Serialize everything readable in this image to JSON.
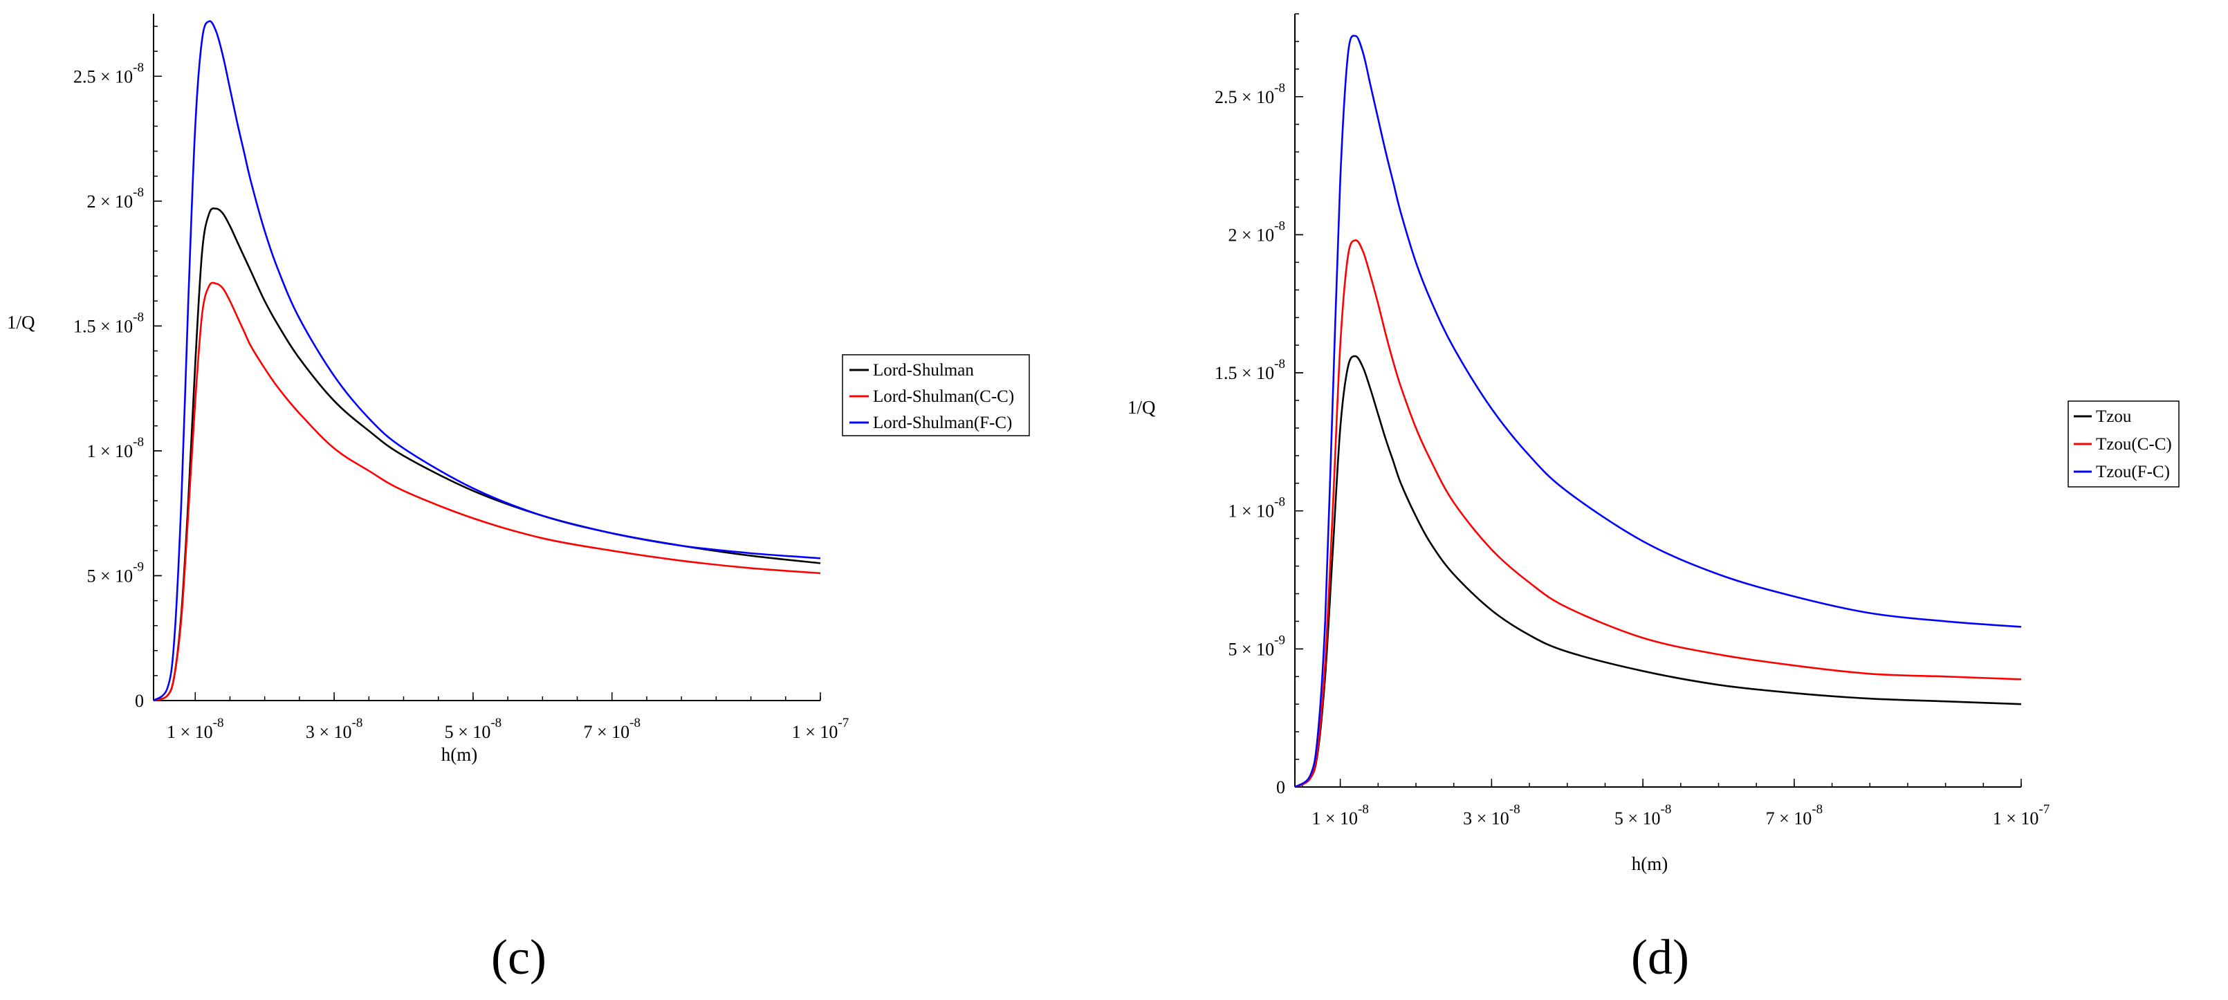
{
  "chart_data": [
    {
      "type": "line",
      "panel_label": "(c)",
      "xlabel": "h(m)",
      "ylabel": "1/Q",
      "xlim": [
        4e-09,
        1e-07
      ],
      "ylim": [
        0,
        2.75e-08
      ],
      "x_ticks": [
        {
          "value": 1e-08,
          "mant": "1",
          "exp": "-8"
        },
        {
          "value": 3e-08,
          "mant": "3",
          "exp": "-8"
        },
        {
          "value": 5e-08,
          "mant": "5",
          "exp": "-8"
        },
        {
          "value": 7e-08,
          "mant": "7",
          "exp": "-8"
        },
        {
          "value": 1e-07,
          "mant": "1",
          "exp": "-7"
        }
      ],
      "y_ticks": [
        {
          "value": 0,
          "mant": "0",
          "exp": ""
        },
        {
          "value": 5e-09,
          "mant": "5",
          "exp": "-9"
        },
        {
          "value": 1e-08,
          "mant": "1",
          "exp": "-8"
        },
        {
          "value": 1.5e-08,
          "mant": "1.5",
          "exp": "-8"
        },
        {
          "value": 2e-08,
          "mant": "2",
          "exp": "-8"
        },
        {
          "value": 2.5e-08,
          "mant": "2.5",
          "exp": "-8"
        }
      ],
      "legend_position": "right",
      "series": [
        {
          "name": "Lord-Shulman",
          "color": "#000000",
          "x": [
            4e-09,
            6e-09,
            7e-09,
            8e-09,
            9e-09,
            1e-08,
            1.1e-08,
            1.2e-08,
            1.3e-08,
            1.4e-08,
            1.5e-08,
            1.6e-08,
            1.7e-08,
            1.8e-08,
            2e-08,
            2.2e-08,
            2.5e-08,
            3e-08,
            3.5e-08,
            4e-08,
            5e-08,
            6e-08,
            7e-08,
            8e-08,
            9e-08,
            1e-07
          ],
          "y": [
            0,
            2e-10,
            1e-09,
            3.5e-09,
            8e-09,
            1.35e-08,
            1.8e-08,
            1.95e-08,
            1.97e-08,
            1.95e-08,
            1.9e-08,
            1.84e-08,
            1.78e-08,
            1.72e-08,
            1.6e-08,
            1.5e-08,
            1.37e-08,
            1.2e-08,
            1.08e-08,
            9.8e-09,
            8.4e-09,
            7.4e-09,
            6.7e-09,
            6.2e-09,
            5.8e-09,
            5.5e-09
          ]
        },
        {
          "name": "Lord-Shulman(C-C)",
          "color": "#ff0000",
          "x": [
            4e-09,
            6e-09,
            7e-09,
            8e-09,
            9e-09,
            1e-08,
            1.1e-08,
            1.2e-08,
            1.3e-08,
            1.4e-08,
            1.5e-08,
            1.6e-08,
            1.7e-08,
            1.8e-08,
            2e-08,
            2.2e-08,
            2.5e-08,
            3e-08,
            3.5e-08,
            4e-08,
            5e-08,
            6e-08,
            7e-08,
            8e-08,
            9e-08,
            1e-07
          ],
          "y": [
            0,
            2e-10,
            1e-09,
            3.3e-09,
            7.5e-09,
            1.2e-08,
            1.55e-08,
            1.66e-08,
            1.67e-08,
            1.65e-08,
            1.6e-08,
            1.54e-08,
            1.48e-08,
            1.42e-08,
            1.33e-08,
            1.25e-08,
            1.15e-08,
            1.01e-08,
            9.2e-09,
            8.4e-09,
            7.3e-09,
            6.5e-09,
            6e-09,
            5.6e-09,
            5.3e-09,
            5.1e-09
          ]
        },
        {
          "name": "Lord-Shulman(F-C)",
          "color": "#0000ff",
          "x": [
            4e-09,
            6e-09,
            7e-09,
            8e-09,
            9e-09,
            1e-08,
            1.1e-08,
            1.2e-08,
            1.3e-08,
            1.4e-08,
            1.5e-08,
            1.6e-08,
            1.7e-08,
            1.8e-08,
            2e-08,
            2.2e-08,
            2.5e-08,
            3e-08,
            3.5e-08,
            4e-08,
            5e-08,
            6e-08,
            7e-08,
            8e-08,
            9e-08,
            1e-07
          ],
          "y": [
            0,
            5e-10,
            2.5e-09,
            8e-09,
            1.6e-08,
            2.3e-08,
            2.65e-08,
            2.72e-08,
            2.68e-08,
            2.58e-08,
            2.45e-08,
            2.32e-08,
            2.2e-08,
            2.08e-08,
            1.88e-08,
            1.72e-08,
            1.53e-08,
            1.3e-08,
            1.13e-08,
            1.01e-08,
            8.5e-09,
            7.4e-09,
            6.7e-09,
            6.2e-09,
            5.9e-09,
            5.7e-09
          ]
        }
      ]
    },
    {
      "type": "line",
      "panel_label": "(d)",
      "xlabel": "h(m)",
      "ylabel": "1/Q",
      "xlim": [
        4e-09,
        1e-07
      ],
      "ylim": [
        0,
        2.8e-08
      ],
      "x_ticks": [
        {
          "value": 1e-08,
          "mant": "1",
          "exp": "-8"
        },
        {
          "value": 3e-08,
          "mant": "3",
          "exp": "-8"
        },
        {
          "value": 5e-08,
          "mant": "5",
          "exp": "-8"
        },
        {
          "value": 7e-08,
          "mant": "7",
          "exp": "-8"
        },
        {
          "value": 1e-07,
          "mant": "1",
          "exp": "-7"
        }
      ],
      "y_ticks": [
        {
          "value": 0,
          "mant": "0",
          "exp": ""
        },
        {
          "value": 5e-09,
          "mant": "5",
          "exp": "-9"
        },
        {
          "value": 1e-08,
          "mant": "1",
          "exp": "-8"
        },
        {
          "value": 1.5e-08,
          "mant": "1.5",
          "exp": "-8"
        },
        {
          "value": 2e-08,
          "mant": "2",
          "exp": "-8"
        },
        {
          "value": 2.5e-08,
          "mant": "2.5",
          "exp": "-8"
        }
      ],
      "legend_position": "right",
      "series": [
        {
          "name": "Tzou",
          "color": "#000000",
          "x": [
            4e-09,
            6e-09,
            7e-09,
            8e-09,
            9e-09,
            1e-08,
            1.1e-08,
            1.2e-08,
            1.3e-08,
            1.4e-08,
            1.5e-08,
            1.6e-08,
            1.7e-08,
            1.8e-08,
            2e-08,
            2.2e-08,
            2.5e-08,
            3e-08,
            3.5e-08,
            4e-08,
            5e-08,
            6e-08,
            7e-08,
            8e-08,
            9e-08,
            1e-07
          ],
          "y": [
            0,
            3e-10,
            1.2e-09,
            4e-09,
            8.5e-09,
            1.3e-08,
            1.52e-08,
            1.56e-08,
            1.52e-08,
            1.44e-08,
            1.35e-08,
            1.26e-08,
            1.18e-08,
            1.1e-08,
            9.8e-09,
            8.8e-09,
            7.7e-09,
            6.4e-09,
            5.5e-09,
            4.9e-09,
            4.2e-09,
            3.7e-09,
            3.4e-09,
            3.2e-09,
            3.1e-09,
            3e-09
          ]
        },
        {
          "name": "Tzou(C-C)",
          "color": "#ff0000",
          "x": [
            4e-09,
            6e-09,
            7e-09,
            8e-09,
            9e-09,
            1e-08,
            1.1e-08,
            1.2e-08,
            1.3e-08,
            1.4e-08,
            1.5e-08,
            1.6e-08,
            1.7e-08,
            1.8e-08,
            2e-08,
            2.2e-08,
            2.5e-08,
            3e-08,
            3.5e-08,
            4e-08,
            5e-08,
            6e-08,
            7e-08,
            8e-08,
            9e-08,
            1e-07
          ],
          "y": [
            0,
            3e-10,
            1.3e-09,
            4.5e-09,
            1e-08,
            1.6e-08,
            1.92e-08,
            1.98e-08,
            1.94e-08,
            1.85e-08,
            1.75e-08,
            1.64e-08,
            1.54e-08,
            1.45e-08,
            1.3e-08,
            1.18e-08,
            1.03e-08,
            8.6e-09,
            7.4e-09,
            6.5e-09,
            5.4e-09,
            4.8e-09,
            4.4e-09,
            4.1e-09,
            4e-09,
            3.9e-09
          ]
        },
        {
          "name": "Tzou(F-C)",
          "color": "#0000ff",
          "x": [
            4e-09,
            6e-09,
            7e-09,
            8e-09,
            9e-09,
            1e-08,
            1.1e-08,
            1.2e-08,
            1.3e-08,
            1.4e-08,
            1.5e-08,
            1.6e-08,
            1.7e-08,
            1.8e-08,
            2e-08,
            2.2e-08,
            2.5e-08,
            3e-08,
            3.5e-08,
            4e-08,
            5e-08,
            6e-08,
            7e-08,
            8e-08,
            9e-08,
            1e-07
          ],
          "y": [
            0,
            4e-10,
            1.8e-09,
            6e-09,
            1.4e-08,
            2.2e-08,
            2.65e-08,
            2.72e-08,
            2.66e-08,
            2.54e-08,
            2.42e-08,
            2.3e-08,
            2.19e-08,
            2.08e-08,
            1.9e-08,
            1.76e-08,
            1.59e-08,
            1.37e-08,
            1.2e-08,
            1.07e-08,
            8.9e-09,
            7.7e-09,
            6.9e-09,
            6.3e-09,
            6e-09,
            5.8e-09
          ]
        }
      ]
    }
  ]
}
